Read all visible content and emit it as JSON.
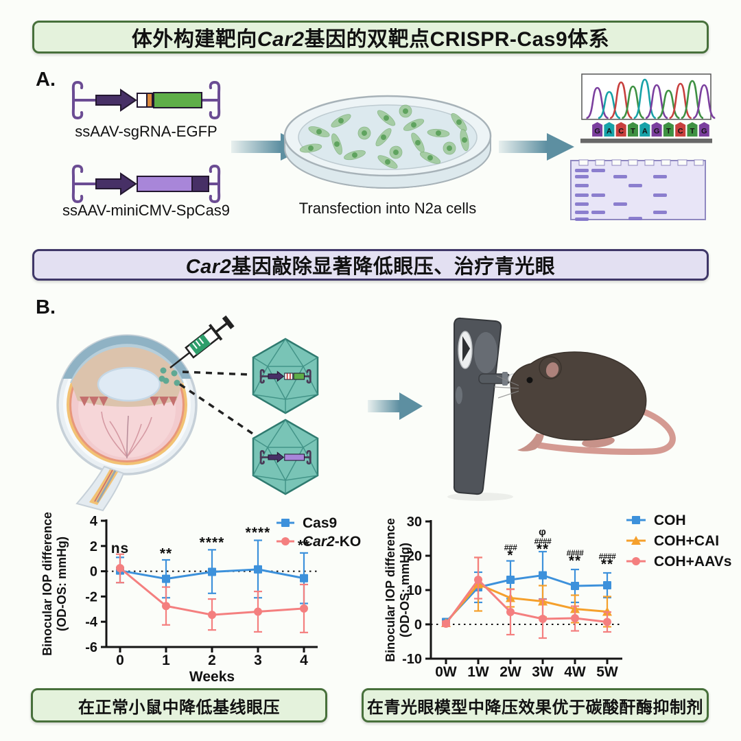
{
  "banners": {
    "top": {
      "parts": [
        {
          "t": "体外构建靶向"
        },
        {
          "t": "Car2",
          "i": true
        },
        {
          "t": "基因的双靶点CRISPR-Cas9体系"
        }
      ]
    },
    "middle": {
      "parts": [
        {
          "t": "Car2",
          "i": true
        },
        {
          "t": "基因敲除显著降低眼压、治疗青光眼"
        }
      ]
    },
    "bottom_left": {
      "text": "在正常小鼠中降低基线眼压"
    },
    "bottom_right": {
      "text": "在青光眼模型中降压效果优于碳酸酐酶抑制剂"
    }
  },
  "section_a": {
    "panel_label": "A.",
    "construct1_label": "ssAAV-sgRNA-EGFP",
    "construct2_label": "ssAAV-miniCMV-SpCas9",
    "dish_caption": "Transfection into N2a cells",
    "sequence": {
      "letters": [
        "G",
        "A",
        "C",
        "T",
        "A",
        "G",
        "T",
        "C",
        "T",
        "G"
      ],
      "base_colors": {
        "G": "#7B3F9E",
        "A": "#17A2A8",
        "C": "#C8403E",
        "T": "#3F9143"
      }
    }
  },
  "section_b": {
    "panel_label": "B."
  },
  "colors": {
    "arrow_teal": "#5D8FA1",
    "aav_fill": "#79C4B6",
    "aav_stroke": "#2F7A6F",
    "banner_green_border": "#47703B",
    "banner_purple_border": "#3F3768"
  },
  "chart_data": [
    {
      "type": "line",
      "ylabel_lines": [
        "Binocular IOP difference",
        "(OD-OS: mmHg)"
      ],
      "xlabel": "Weeks",
      "categories": [
        "0",
        "1",
        "2",
        "3",
        "4"
      ],
      "ylim": [
        -6,
        4
      ],
      "yticks": [
        -6,
        -4,
        -2,
        0,
        2,
        4
      ],
      "zero_line": true,
      "legend_position": "top-right",
      "series": [
        {
          "name": "Cas9",
          "name_parts": [
            {
              "t": "Cas9"
            }
          ],
          "color": "#3D91DB",
          "marker": "square",
          "values": [
            0.05,
            -0.6,
            -0.05,
            0.15,
            -0.55
          ],
          "err_up": [
            1.05,
            1.5,
            1.75,
            2.3,
            2.0
          ],
          "err_dn": [
            0.95,
            1.5,
            1.7,
            2.25,
            2.0
          ]
        },
        {
          "name": "Car2-KO",
          "name_parts": [
            {
              "t": "Car2",
              "i": true
            },
            {
              "t": "-KO"
            }
          ],
          "color": "#F47F7F",
          "marker": "circle",
          "values": [
            0.25,
            -2.75,
            -3.45,
            -3.2,
            -2.95
          ],
          "err_up": [
            1.1,
            1.5,
            1.25,
            1.6,
            1.9
          ],
          "err_dn": [
            1.15,
            1.5,
            1.2,
            1.6,
            1.9
          ]
        }
      ],
      "annotations": [
        {
          "x": 0,
          "y": 1.45,
          "lines": [
            "ns"
          ]
        },
        {
          "x": 1,
          "y": 1.05,
          "lines": [
            "**"
          ]
        },
        {
          "x": 2,
          "y": 1.9,
          "lines": [
            "****"
          ]
        },
        {
          "x": 3,
          "y": 2.7,
          "lines": [
            "****"
          ]
        },
        {
          "x": 4,
          "y": 1.7,
          "lines": [
            "**"
          ]
        }
      ]
    },
    {
      "type": "line",
      "ylabel_lines": [
        "Binocular IOP difference",
        "(OD-OS: mmHg)"
      ],
      "xlabel": "",
      "categories": [
        "0W",
        "1W",
        "2W",
        "3W",
        "4W",
        "5W"
      ],
      "ylim": [
        -10,
        30
      ],
      "yticks": [
        -10,
        0,
        10,
        20,
        30
      ],
      "zero_line": true,
      "legend_position": "top-right",
      "series": [
        {
          "name": "COH",
          "name_parts": [
            {
              "t": "COH"
            }
          ],
          "color": "#3D91DB",
          "marker": "square",
          "values": [
            0.7,
            10.8,
            13.0,
            14.3,
            11.2,
            11.4
          ],
          "err_up": [
            0.6,
            4.4,
            5.5,
            6.9,
            4.8,
            3.6
          ],
          "err_dn": [
            0.6,
            4.4,
            5.5,
            6.9,
            4.8,
            3.6
          ]
        },
        {
          "name": "COH+CAI",
          "name_parts": [
            {
              "t": "COH+CAI"
            }
          ],
          "color": "#F5A02C",
          "marker": "triangle",
          "values": [
            0.4,
            11.7,
            7.7,
            6.7,
            4.5,
            3.7
          ],
          "err_up": [
            0.5,
            7.8,
            2.6,
            4.6,
            4.0,
            4.4
          ],
          "err_dn": [
            0.5,
            7.8,
            2.6,
            4.6,
            4.0,
            4.4
          ]
        },
        {
          "name": "COH+AAVs",
          "name_parts": [
            {
              "t": "COH+AAVs"
            }
          ],
          "color": "#F47F7F",
          "marker": "circle",
          "values": [
            0.2,
            13.0,
            3.6,
            1.6,
            1.8,
            0.7
          ],
          "err_up": [
            0.7,
            6.5,
            6.6,
            5.7,
            3.5,
            2.9
          ],
          "err_dn": [
            0.7,
            5.5,
            6.6,
            5.6,
            3.7,
            2.9
          ]
        }
      ],
      "annotations": [
        {
          "x": 2,
          "y": 21.6,
          "lines": [
            "###",
            "*"
          ]
        },
        {
          "x": 3,
          "y": 26.0,
          "lines": [
            "φ",
            "####",
            "**"
          ]
        },
        {
          "x": 4,
          "y": 20.0,
          "lines": [
            "####",
            "**"
          ]
        },
        {
          "x": 5,
          "y": 19.0,
          "lines": [
            "####",
            "**"
          ]
        }
      ]
    }
  ]
}
